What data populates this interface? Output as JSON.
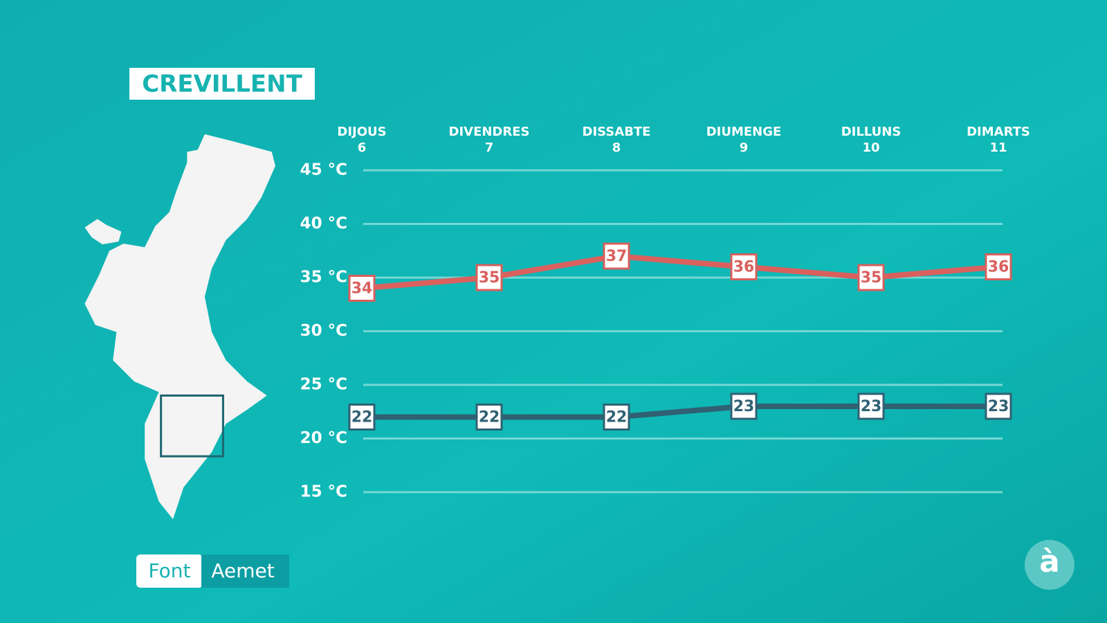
{
  "title": "CREVILLENT",
  "source": {
    "label": "Font",
    "name": "Aemet"
  },
  "logo": "à",
  "chart_data": {
    "type": "line",
    "categories": [
      [
        "DIJOUS",
        "6"
      ],
      [
        "DIVENDRES",
        "7"
      ],
      [
        "DISSABTE",
        "8"
      ],
      [
        "DIUMENGE",
        "9"
      ],
      [
        "DILLUNS",
        "10"
      ],
      [
        "DIMARTS",
        "11"
      ]
    ],
    "series": [
      {
        "color": "#d9605d",
        "values": [
          34,
          35,
          37,
          36,
          35,
          36
        ]
      },
      {
        "color": "#2f6173",
        "values": [
          22,
          22,
          22,
          23,
          23,
          23
        ]
      }
    ],
    "ylim": [
      15,
      45
    ],
    "yticks": [
      {
        "value": 15,
        "label": "15 °C"
      },
      {
        "value": 20,
        "label": "20 °C"
      },
      {
        "value": 25,
        "label": "25 °C"
      },
      {
        "value": 30,
        "label": "30 °C"
      },
      {
        "value": 35,
        "label": "35 °C"
      },
      {
        "value": 40,
        "label": "40 °C"
      },
      {
        "value": 45,
        "label": "45 °C"
      }
    ],
    "grid": true
  }
}
